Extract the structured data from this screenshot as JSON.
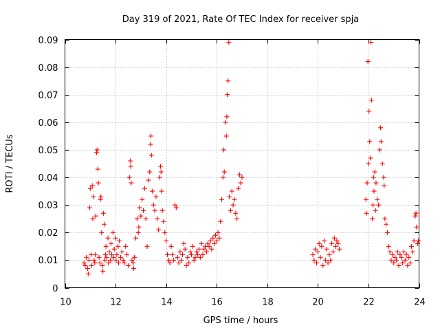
{
  "chart_data": {
    "type": "scatter",
    "title": "Day 319 of 2021, Rate Of TEC Index for receiver spja",
    "xlabel": "GPS time / hours",
    "ylabel": "ROTI / TECUs",
    "xlim": [
      10,
      24
    ],
    "ylim": [
      0,
      0.09
    ],
    "x_ticks": [
      10,
      12,
      14,
      16,
      18,
      20,
      22,
      24
    ],
    "y_ticks": [
      0,
      0.01,
      0.02,
      0.03,
      0.04,
      0.05,
      0.06,
      0.07,
      0.08,
      0.09
    ],
    "x_tick_labels": [
      "10",
      "12",
      "14",
      "16",
      "18",
      "20",
      "22",
      "24"
    ],
    "y_tick_labels": [
      "0",
      "0.01",
      "0.02",
      "0.03",
      "0.04",
      "0.05",
      "0.06",
      "0.07",
      "0.08",
      "0.09"
    ],
    "grid": true,
    "marker": "plus",
    "color": "#ff0000",
    "series": [
      {
        "name": "ROTI",
        "points": [
          [
            10.75,
            0.009
          ],
          [
            10.8,
            0.008
          ],
          [
            10.85,
            0.011
          ],
          [
            10.9,
            0.007
          ],
          [
            10.92,
            0.005
          ],
          [
            10.95,
            0.01
          ],
          [
            10.98,
            0.029
          ],
          [
            11.0,
            0.036
          ],
          [
            11.03,
            0.012
          ],
          [
            11.05,
            0.008
          ],
          [
            11.08,
            0.037
          ],
          [
            11.1,
            0.025
          ],
          [
            11.12,
            0.033
          ],
          [
            11.15,
            0.01
          ],
          [
            11.18,
            0.009
          ],
          [
            11.2,
            0.012
          ],
          [
            11.22,
            0.026
          ],
          [
            11.25,
            0.049
          ],
          [
            11.27,
            0.05
          ],
          [
            11.3,
            0.043
          ],
          [
            11.32,
            0.038
          ],
          [
            11.35,
            0.011
          ],
          [
            11.38,
            0.009
          ],
          [
            11.4,
            0.032
          ],
          [
            11.42,
            0.033
          ],
          [
            11.45,
            0.02
          ],
          [
            11.48,
            0.008
          ],
          [
            11.5,
            0.006
          ],
          [
            11.52,
            0.027
          ],
          [
            11.55,
            0.023
          ],
          [
            11.58,
            0.01
          ],
          [
            11.6,
            0.012
          ],
          [
            11.62,
            0.015
          ],
          [
            11.65,
            0.011
          ],
          [
            11.7,
            0.018
          ],
          [
            11.72,
            0.009
          ],
          [
            11.75,
            0.013
          ],
          [
            11.8,
            0.01
          ],
          [
            11.82,
            0.016
          ],
          [
            11.85,
            0.012
          ],
          [
            11.9,
            0.02
          ],
          [
            11.92,
            0.011
          ],
          [
            11.95,
            0.014
          ],
          [
            12.0,
            0.018
          ],
          [
            12.02,
            0.01
          ],
          [
            12.05,
            0.012
          ],
          [
            12.1,
            0.015
          ],
          [
            12.12,
            0.009
          ],
          [
            12.15,
            0.017
          ],
          [
            12.2,
            0.011
          ],
          [
            12.25,
            0.013
          ],
          [
            12.3,
            0.01
          ],
          [
            12.35,
            0.009
          ],
          [
            12.4,
            0.015
          ],
          [
            12.45,
            0.012
          ],
          [
            12.5,
            0.008
          ],
          [
            12.55,
            0.04
          ],
          [
            12.58,
            0.046
          ],
          [
            12.6,
            0.044
          ],
          [
            12.62,
            0.038
          ],
          [
            12.65,
            0.01
          ],
          [
            12.7,
            0.009
          ],
          [
            12.72,
            0.007
          ],
          [
            12.75,
            0.011
          ],
          [
            12.8,
            0.018
          ],
          [
            12.85,
            0.025
          ],
          [
            12.9,
            0.02
          ],
          [
            12.92,
            0.022
          ],
          [
            12.95,
            0.029
          ],
          [
            13.0,
            0.026
          ],
          [
            13.05,
            0.032
          ],
          [
            13.1,
            0.028
          ],
          [
            13.15,
            0.036
          ],
          [
            13.2,
            0.025
          ],
          [
            13.25,
            0.015
          ],
          [
            13.3,
            0.039
          ],
          [
            13.35,
            0.042
          ],
          [
            13.38,
            0.052
          ],
          [
            13.4,
            0.055
          ],
          [
            13.42,
            0.048
          ],
          [
            13.45,
            0.035
          ],
          [
            13.5,
            0.03
          ],
          [
            13.55,
            0.028
          ],
          [
            13.6,
            0.033
          ],
          [
            13.65,
            0.025
          ],
          [
            13.7,
            0.021
          ],
          [
            13.75,
            0.04
          ],
          [
            13.78,
            0.044
          ],
          [
            13.8,
            0.042
          ],
          [
            13.82,
            0.035
          ],
          [
            13.85,
            0.028
          ],
          [
            13.9,
            0.024
          ],
          [
            13.95,
            0.02
          ],
          [
            14.0,
            0.017
          ],
          [
            14.05,
            0.012
          ],
          [
            14.1,
            0.01
          ],
          [
            14.15,
            0.009
          ],
          [
            14.2,
            0.015
          ],
          [
            14.25,
            0.012
          ],
          [
            14.3,
            0.01
          ],
          [
            14.35,
            0.03
          ],
          [
            14.4,
            0.029
          ],
          [
            14.45,
            0.011
          ],
          [
            14.5,
            0.009
          ],
          [
            14.55,
            0.013
          ],
          [
            14.6,
            0.01
          ],
          [
            14.65,
            0.012
          ],
          [
            14.7,
            0.016
          ],
          [
            14.75,
            0.014
          ],
          [
            14.8,
            0.008
          ],
          [
            14.85,
            0.011
          ],
          [
            14.9,
            0.009
          ],
          [
            14.95,
            0.013
          ],
          [
            15.0,
            0.012
          ],
          [
            15.05,
            0.015
          ],
          [
            15.1,
            0.01
          ],
          [
            15.15,
            0.011
          ],
          [
            15.2,
            0.013
          ],
          [
            15.25,
            0.012
          ],
          [
            15.3,
            0.014
          ],
          [
            15.35,
            0.011
          ],
          [
            15.4,
            0.016
          ],
          [
            15.45,
            0.012
          ],
          [
            15.5,
            0.014
          ],
          [
            15.55,
            0.015
          ],
          [
            15.6,
            0.013
          ],
          [
            15.65,
            0.016
          ],
          [
            15.7,
            0.015
          ],
          [
            15.75,
            0.017
          ],
          [
            15.8,
            0.014
          ],
          [
            15.85,
            0.018
          ],
          [
            15.9,
            0.016
          ],
          [
            15.95,
            0.019
          ],
          [
            16.0,
            0.017
          ],
          [
            16.05,
            0.02
          ],
          [
            16.1,
            0.018
          ],
          [
            16.15,
            0.024
          ],
          [
            16.2,
            0.032
          ],
          [
            16.25,
            0.04
          ],
          [
            16.28,
            0.05
          ],
          [
            16.3,
            0.042
          ],
          [
            16.35,
            0.06
          ],
          [
            16.38,
            0.055
          ],
          [
            16.4,
            0.062
          ],
          [
            16.42,
            0.07
          ],
          [
            16.45,
            0.075
          ],
          [
            16.48,
            0.089
          ],
          [
            16.5,
            0.033
          ],
          [
            16.55,
            0.028
          ],
          [
            16.6,
            0.035
          ],
          [
            16.65,
            0.03
          ],
          [
            16.7,
            0.032
          ],
          [
            16.75,
            0.027
          ],
          [
            16.8,
            0.025
          ],
          [
            16.85,
            0.036
          ],
          [
            16.9,
            0.041
          ],
          [
            16.95,
            0.038
          ],
          [
            17.0,
            0.04
          ],
          [
            19.8,
            0.012
          ],
          [
            19.85,
            0.01
          ],
          [
            19.9,
            0.014
          ],
          [
            19.95,
            0.009
          ],
          [
            20.0,
            0.013
          ],
          [
            20.05,
            0.016
          ],
          [
            20.1,
            0.011
          ],
          [
            20.15,
            0.015
          ],
          [
            20.2,
            0.008
          ],
          [
            20.25,
            0.017
          ],
          [
            20.3,
            0.01
          ],
          [
            20.35,
            0.014
          ],
          [
            20.4,
            0.009
          ],
          [
            20.45,
            0.012
          ],
          [
            20.5,
            0.01
          ],
          [
            20.55,
            0.016
          ],
          [
            20.6,
            0.013
          ],
          [
            20.65,
            0.018
          ],
          [
            20.7,
            0.015
          ],
          [
            20.75,
            0.017
          ],
          [
            20.8,
            0.016
          ],
          [
            20.85,
            0.014
          ],
          [
            21.9,
            0.032
          ],
          [
            21.92,
            0.027
          ],
          [
            21.95,
            0.038
          ],
          [
            21.98,
            0.082
          ],
          [
            22.0,
            0.045
          ],
          [
            22.02,
            0.064
          ],
          [
            22.05,
            0.053
          ],
          [
            22.08,
            0.047
          ],
          [
            22.1,
            0.089
          ],
          [
            22.12,
            0.068
          ],
          [
            22.15,
            0.025
          ],
          [
            22.18,
            0.03
          ],
          [
            22.2,
            0.04
          ],
          [
            22.22,
            0.035
          ],
          [
            22.25,
            0.042
          ],
          [
            22.28,
            0.028
          ],
          [
            22.3,
            0.038
          ],
          [
            22.35,
            0.032
          ],
          [
            22.4,
            0.03
          ],
          [
            22.45,
            0.05
          ],
          [
            22.48,
            0.058
          ],
          [
            22.5,
            0.053
          ],
          [
            22.55,
            0.045
          ],
          [
            22.6,
            0.04
          ],
          [
            22.62,
            0.037
          ],
          [
            22.65,
            0.025
          ],
          [
            22.7,
            0.023
          ],
          [
            22.75,
            0.02
          ],
          [
            22.8,
            0.015
          ],
          [
            22.85,
            0.013
          ],
          [
            22.9,
            0.01
          ],
          [
            22.95,
            0.012
          ],
          [
            23.0,
            0.009
          ],
          [
            23.05,
            0.011
          ],
          [
            23.1,
            0.01
          ],
          [
            23.15,
            0.013
          ],
          [
            23.2,
            0.008
          ],
          [
            23.25,
            0.012
          ],
          [
            23.3,
            0.011
          ],
          [
            23.35,
            0.009
          ],
          [
            23.4,
            0.013
          ],
          [
            23.45,
            0.01
          ],
          [
            23.5,
            0.012
          ],
          [
            23.55,
            0.008
          ],
          [
            23.6,
            0.011
          ],
          [
            23.65,
            0.009
          ],
          [
            23.7,
            0.015
          ],
          [
            23.75,
            0.013
          ],
          [
            23.8,
            0.017
          ],
          [
            23.85,
            0.026
          ],
          [
            23.88,
            0.027
          ],
          [
            23.9,
            0.022
          ],
          [
            23.95,
            0.016
          ],
          [
            23.98,
            0.017
          ]
        ]
      }
    ]
  }
}
